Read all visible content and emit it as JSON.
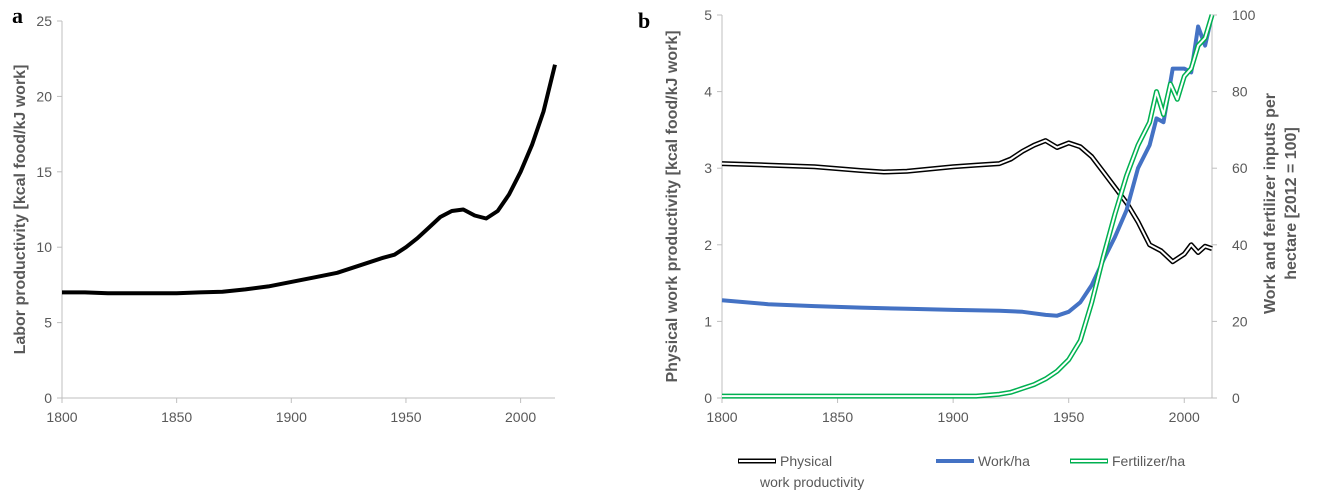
{
  "chart_data": [
    {
      "panel": "a",
      "type": "line",
      "xlabel": "",
      "ylabel": "Labor productivity [kcal food/kJ work]",
      "xlim": [
        1800,
        2015
      ],
      "ylim": [
        0,
        25
      ],
      "xticks": [
        "1800",
        "1850",
        "1900",
        "1950",
        "2000"
      ],
      "yticks": [
        "0",
        "5",
        "10",
        "15",
        "20",
        "25"
      ],
      "grid": false,
      "series": [
        {
          "color": "#000000",
          "x": [
            1800,
            1810,
            1820,
            1830,
            1840,
            1850,
            1860,
            1870,
            1880,
            1890,
            1900,
            1910,
            1920,
            1930,
            1940,
            1945,
            1950,
            1955,
            1960,
            1965,
            1970,
            1975,
            1980,
            1985,
            1990,
            1995,
            2000,
            2005,
            2010,
            2015
          ],
          "y": [
            7.0,
            7.0,
            6.95,
            6.95,
            6.95,
            6.95,
            7.0,
            7.05,
            7.2,
            7.4,
            7.7,
            8.0,
            8.3,
            8.8,
            9.3,
            9.5,
            10.0,
            10.6,
            11.3,
            12.0,
            12.4,
            12.5,
            12.1,
            11.9,
            12.4,
            13.5,
            15.0,
            16.8,
            19.0,
            22.1
          ]
        }
      ]
    },
    {
      "panel": "b",
      "type": "line",
      "xlabel": "",
      "ylabel": "Physical work productivity [kcal food/kJ work]",
      "y2label": "Work and fertilizer inputs per hectare [2012 = 100]",
      "xlim": [
        1800,
        2012
      ],
      "ylim": [
        0,
        5
      ],
      "y2lim": [
        0,
        100
      ],
      "xticks": [
        "1800",
        "1850",
        "1900",
        "1950",
        "2000"
      ],
      "yticks": [
        "0",
        "1",
        "2",
        "3",
        "4",
        "5"
      ],
      "y2ticks": [
        "0",
        "20",
        "40",
        "60",
        "80",
        "100"
      ],
      "grid": false,
      "legend_position": "bottom",
      "series": [
        {
          "name": "Physical\nwork productivity",
          "axis": "left",
          "style": "double",
          "color": "#000000",
          "x": [
            1800,
            1820,
            1840,
            1860,
            1870,
            1880,
            1890,
            1900,
            1910,
            1920,
            1925,
            1930,
            1935,
            1940,
            1945,
            1950,
            1955,
            1960,
            1965,
            1970,
            1975,
            1980,
            1985,
            1990,
            1995,
            2000,
            2003,
            2006,
            2009,
            2012
          ],
          "y": [
            3.06,
            3.04,
            3.02,
            2.97,
            2.95,
            2.96,
            2.99,
            3.02,
            3.04,
            3.06,
            3.12,
            3.22,
            3.3,
            3.36,
            3.27,
            3.33,
            3.28,
            3.15,
            2.95,
            2.75,
            2.55,
            2.3,
            2.0,
            1.92,
            1.78,
            1.88,
            2.0,
            1.9,
            1.98,
            1.95
          ]
        },
        {
          "name": "Work/ha",
          "axis": "right",
          "style": "solid",
          "color": "#4472c4",
          "x": [
            1800,
            1820,
            1840,
            1860,
            1880,
            1900,
            1920,
            1930,
            1940,
            1945,
            1950,
            1955,
            1960,
            1965,
            1970,
            1975,
            1980,
            1985,
            1988,
            1991,
            1995,
            2000,
            2003,
            2006,
            2009,
            2012
          ],
          "y": [
            25.5,
            24.5,
            24.0,
            23.6,
            23.3,
            23.0,
            22.8,
            22.5,
            21.7,
            21.5,
            22.5,
            25.0,
            29.5,
            36.0,
            42.0,
            49.0,
            60.0,
            66.0,
            73.0,
            72.0,
            86.0,
            86.0,
            85.0,
            97.0,
            92.0,
            100.0
          ]
        },
        {
          "name": "Fertilizer/ha",
          "axis": "right",
          "style": "double",
          "color": "#00b050",
          "x": [
            1800,
            1850,
            1900,
            1910,
            1920,
            1925,
            1930,
            1935,
            1940,
            1945,
            1950,
            1955,
            1960,
            1965,
            1970,
            1975,
            1980,
            1985,
            1988,
            1991,
            1994,
            1997,
            2000,
            2003,
            2006,
            2009,
            2012
          ],
          "y": [
            0.5,
            0.5,
            0.5,
            0.5,
            1.0,
            1.5,
            2.5,
            3.5,
            5.0,
            7.0,
            10.0,
            15.0,
            25.0,
            37.0,
            48.0,
            58.0,
            66.0,
            72.0,
            80.0,
            74.0,
            82.0,
            78.0,
            84.0,
            86.0,
            92.0,
            94.0,
            100.0
          ]
        }
      ]
    }
  ]
}
